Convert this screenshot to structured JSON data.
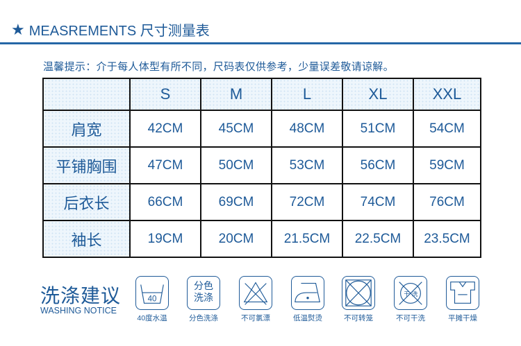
{
  "header": {
    "icon": "star-icon",
    "title": "MEASREMENTS 尺寸测量表"
  },
  "tip": "温馨提示：介于每人体型有所不同，尺码表仅供参考，少量误差敬请谅解。",
  "table": {
    "columns": [
      "S",
      "M",
      "L",
      "XL",
      "XXL"
    ],
    "rows": [
      {
        "label": "肩宽",
        "values": [
          "42CM",
          "45CM",
          "48CM",
          "51CM",
          "54CM"
        ]
      },
      {
        "label": "平铺胸围",
        "values": [
          "47CM",
          "50CM",
          "53CM",
          "56CM",
          "59CM"
        ]
      },
      {
        "label": "后衣长",
        "values": [
          "66CM",
          "69CM",
          "72CM",
          "74CM",
          "76CM"
        ]
      },
      {
        "label": "袖长",
        "values": [
          "19CM",
          "20CM",
          "21.5CM",
          "22.5CM",
          "23.5CM"
        ]
      }
    ]
  },
  "washing": {
    "title": "洗涤建议",
    "subtitle": "WASHING NOTICE",
    "icons": [
      {
        "icon": "wash-40-icon",
        "text": "40",
        "label": "40度水温"
      },
      {
        "icon": "separate-wash-icon",
        "text": "分色洗涤",
        "label": "分色洗涤"
      },
      {
        "icon": "no-bleach-icon",
        "label": "不可氯漂"
      },
      {
        "icon": "low-iron-icon",
        "label": "低温熨烫"
      },
      {
        "icon": "no-tumble-dry-icon",
        "label": "不可转笼"
      },
      {
        "icon": "no-dry-clean-icon",
        "text_a": "干",
        "text_b": "洗",
        "label": "不可干洗"
      },
      {
        "icon": "flat-dry-icon",
        "label": "平摊干燥"
      }
    ]
  },
  "colors": {
    "primary": "#1e5a98",
    "cell_shade": "#eef6fc"
  }
}
